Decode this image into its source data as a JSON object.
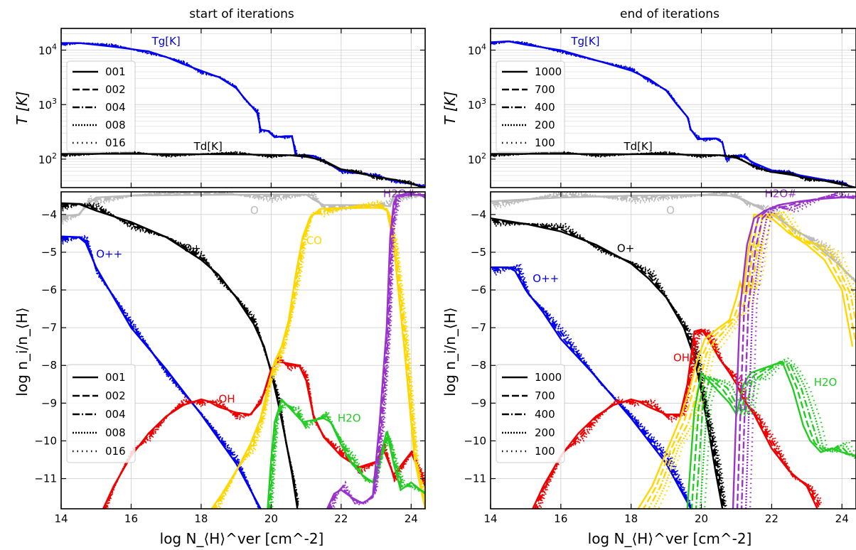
{
  "panels": [
    {
      "title": "start of iterations",
      "legend_top": [
        "001",
        "002",
        "004",
        "008",
        "016"
      ],
      "legend_bottom": [
        "001",
        "002",
        "004",
        "008",
        "016"
      ]
    },
    {
      "title": "end of iterations",
      "legend_top": [
        "1000",
        "700",
        "400",
        "200",
        "100"
      ],
      "legend_bottom": [
        "1000",
        "700",
        "400",
        "200",
        "100"
      ]
    }
  ],
  "axes": {
    "top_ylabel": "T [K]",
    "bottom_ylabel": "log n_i/n_⟨H⟩",
    "xlabel": "log N_⟨H⟩^ver [cm^-2]",
    "xlim": [
      14,
      24.4
    ],
    "xticks": [
      "14",
      "16",
      "18",
      "20",
      "22",
      "24"
    ],
    "top_ylim_log10": [
      1.48,
      4.4
    ],
    "top_yticks": [
      "10^2",
      "10^3",
      "10^4"
    ],
    "bottom_ylim": [
      -11.8,
      -3.4
    ],
    "bottom_yticks": [
      "-4",
      "-5",
      "-6",
      "-7",
      "-8",
      "-9",
      "-10",
      "-11"
    ]
  },
  "colors": {
    "Tg": "#0000ee",
    "Td": "#000000",
    "O": "#bbbbbb",
    "O+": "#000000",
    "O++": "#0000ee",
    "CO": "#ffd700",
    "OH": "#ee0000",
    "H2O": "#22cc22",
    "H2O#": "#9933cc"
  },
  "chart_data": [
    {
      "type": "line",
      "title": "start of iterations",
      "xlim": [
        14,
        24.4
      ],
      "temperature": {
        "ylabel": "T [K]",
        "yscale": "log",
        "ylim": [
          30,
          25000
        ],
        "series": [
          {
            "name": "Tg[K]",
            "x": [
              14,
              14.5,
              15.5,
              16.5,
              17,
              17.5,
              18,
              18.5,
              19,
              19.2,
              19.4,
              19.6,
              19.7,
              19.9,
              20.1,
              20.4,
              20.6,
              20.7,
              20.9,
              21.2,
              21.5,
              22,
              22.5,
              23,
              23.5,
              24,
              24.4
            ],
            "y": [
              13500,
              13500,
              11500,
              9500,
              7500,
              5500,
              4200,
              3200,
              2000,
              1400,
              1000,
              700,
              350,
              330,
              250,
              265,
              265,
              115,
              120,
              115,
              90,
              62,
              55,
              48,
              42,
              35,
              30
            ]
          },
          {
            "name": "Td[K]",
            "x": [
              14,
              15,
              16,
              17,
              18,
              19,
              20,
              20.5,
              21,
              21.5,
              22,
              22.5,
              23,
              23.5,
              24,
              24.4
            ],
            "y": [
              125,
              125,
              125,
              124,
              123,
              122,
              120,
              118,
              110,
              95,
              65,
              55,
              48,
              42,
              35,
              30
            ]
          }
        ]
      },
      "abundance": {
        "ylabel": "log n_i/n_⟨H⟩",
        "ylim": [
          -11.8,
          -3.4
        ],
        "series": [
          {
            "name": "O",
            "x": [
              14,
              14.5,
              14.8,
              15,
              16,
              18,
              20,
              21,
              21.2,
              21.5,
              23,
              23.4,
              23.5,
              24.4
            ],
            "y": [
              -4.05,
              -4.0,
              -3.7,
              -3.55,
              -3.5,
              -3.48,
              -3.47,
              -3.47,
              -3.6,
              -3.75,
              -3.75,
              -3.78,
              -3.48,
              -3.48
            ]
          },
          {
            "name": "O+",
            "x": [
              14,
              14.5,
              15,
              16,
              17,
              18,
              18.5,
              19,
              19.5,
              19.8,
              20,
              20.2,
              20.4,
              20.6,
              20.75
            ],
            "y": [
              -3.7,
              -3.72,
              -3.9,
              -4.2,
              -4.6,
              -5.2,
              -5.6,
              -6.2,
              -6.9,
              -7.5,
              -8.2,
              -9.0,
              -9.9,
              -10.9,
              -11.8
            ]
          },
          {
            "name": "O++",
            "x": [
              14,
              14.5,
              14.7,
              15,
              15.5,
              16,
              17,
              18,
              19,
              19.7
            ],
            "y": [
              -4.58,
              -4.6,
              -4.75,
              -5.4,
              -6.2,
              -7.0,
              -8.1,
              -9.3,
              -10.6,
              -11.8
            ]
          },
          {
            "name": "OH",
            "x": [
              15.2,
              15.5,
              16,
              16.5,
              17,
              17.5,
              18,
              18.2,
              18.5,
              19,
              19.4,
              19.7,
              19.9,
              20,
              20.2,
              20.5,
              20.8,
              21,
              21.2,
              21.5,
              22,
              22.5,
              23,
              23.2,
              23.5,
              24,
              24.4
            ],
            "y": [
              -11.8,
              -11.2,
              -10.4,
              -9.8,
              -9.35,
              -9.05,
              -8.9,
              -8.95,
              -9.1,
              -9.25,
              -9.3,
              -9.0,
              -8.4,
              -8.1,
              -7.9,
              -7.95,
              -8.0,
              -8.4,
              -9.3,
              -9.9,
              -10.4,
              -10.7,
              -10.55,
              -10.2,
              -10.9,
              -10.3,
              -11.2
            ]
          },
          {
            "name": "CO",
            "x": [
              18.3,
              18.6,
              19,
              19.4,
              19.7,
              19.9,
              20.1,
              20.3,
              20.5,
              20.7,
              20.9,
              21.1,
              21.4,
              22,
              23,
              23.3,
              23.5,
              23.8,
              24.1,
              24.4
            ],
            "y": [
              -11.8,
              -11.4,
              -10.8,
              -10.1,
              -9.4,
              -8.6,
              -7.9,
              -7.5,
              -6.8,
              -5.6,
              -4.6,
              -4.1,
              -3.85,
              -3.83,
              -3.82,
              -3.85,
              -4.8,
              -7.5,
              -10.5,
              -11.8
            ]
          },
          {
            "name": "H2O",
            "x": [
              19.9,
              20,
              20.1,
              20.3,
              20.5,
              20.7,
              20.9,
              21.2,
              21.5,
              21.7,
              22,
              22.3,
              22.6,
              22.9,
              23.1,
              23.3,
              23.5,
              23.7,
              24,
              24.4
            ],
            "y": [
              -11.8,
              -10.5,
              -9.5,
              -8.9,
              -9.1,
              -9.3,
              -9.5,
              -9.45,
              -9.4,
              -9.5,
              -10.1,
              -10.6,
              -10.9,
              -11.1,
              -10.5,
              -9.75,
              -10.6,
              -11.3,
              -11.1,
              -11.4
            ]
          },
          {
            "name": "H2O#",
            "x": [
              21.6,
              21.8,
              22,
              22.3,
              22.6,
              22.9,
              23.1,
              23.3,
              23.4,
              23.5,
              23.6,
              24,
              24.4
            ],
            "y": [
              -11.8,
              -11.4,
              -11.3,
              -11.5,
              -11.65,
              -11.5,
              -9.5,
              -7.0,
              -4.6,
              -3.7,
              -3.5,
              -3.48,
              -3.48
            ]
          }
        ]
      }
    },
    {
      "type": "line",
      "title": "end of iterations",
      "xlim": [
        14,
        24.4
      ],
      "temperature": {
        "ylabel": "T [K]",
        "yscale": "log",
        "ylim": [
          30,
          25000
        ],
        "series": [
          {
            "name": "Tg[K]",
            "x": [
              14,
              14.5,
              15,
              16,
              17,
              18,
              18.5,
              19,
              19.3,
              19.6,
              19.7,
              19.9,
              20.1,
              20.4,
              20.6,
              20.7,
              20.9,
              21.2,
              21.5,
              22,
              22.5,
              23,
              23.5,
              24,
              24.4
            ],
            "y": [
              14000,
              14500,
              12500,
              10000,
              6500,
              4200,
              3000,
              1800,
              1000,
              600,
              350,
              230,
              240,
              240,
              200,
              100,
              115,
              110,
              85,
              62,
              55,
              48,
              42,
              35,
              30
            ]
          },
          {
            "name": "Td[K]",
            "x": [
              14,
              15,
              16,
              17,
              18,
              19,
              20,
              20.5,
              21,
              21.5,
              22,
              22.5,
              23,
              23.5,
              24,
              24.4
            ],
            "y": [
              125,
              125,
              125,
              124,
              123,
              122,
              120,
              118,
              105,
              75,
              58,
              52,
              45,
              40,
              34,
              30
            ]
          }
        ]
      },
      "abundance": {
        "ylabel": "log n_i/n_⟨H⟩",
        "ylim": [
          -11.8,
          -3.4
        ],
        "series": [
          {
            "name": "O",
            "x": [
              14,
              15,
              16,
              18,
              20,
              20.8,
              21.2,
              21.5,
              22,
              22.5,
              23,
              23.5,
              24,
              24.4
            ],
            "y": [
              -3.65,
              -3.6,
              -3.55,
              -3.5,
              -3.48,
              -3.5,
              -3.6,
              -3.75,
              -4.0,
              -4.3,
              -4.6,
              -5.0,
              -5.4,
              -5.8
            ]
          },
          {
            "name": "O+",
            "x": [
              14,
              15,
              16,
              17,
              18,
              18.5,
              19,
              19.5,
              19.8,
              20,
              20.2,
              20.4,
              20.6
            ],
            "y": [
              -4.1,
              -4.25,
              -4.45,
              -4.8,
              -5.3,
              -5.7,
              -6.2,
              -7.0,
              -7.8,
              -8.7,
              -9.7,
              -10.8,
              -11.8
            ]
          },
          {
            "name": "O++",
            "x": [
              14,
              14.5,
              14.7,
              15,
              15.5,
              16,
              17,
              18,
              19,
              19.7
            ],
            "y": [
              -5.4,
              -5.4,
              -5.5,
              -6.0,
              -6.6,
              -7.3,
              -8.3,
              -9.4,
              -10.6,
              -11.8
            ]
          },
          {
            "name": "OH",
            "x": [
              15.2,
              15.5,
              16,
              16.5,
              17,
              17.5,
              18,
              18.2,
              18.5,
              19,
              19.4,
              19.6,
              19.8,
              20,
              20.2,
              20.5,
              20.8,
              21,
              21.2,
              21.5,
              22,
              22.5,
              23,
              23.3
            ],
            "y": [
              -11.8,
              -11.2,
              -10.4,
              -9.8,
              -9.35,
              -9.05,
              -8.9,
              -8.95,
              -9.1,
              -9.3,
              -9.3,
              -8.5,
              -7.1,
              -7.05,
              -7.3,
              -7.8,
              -8.2,
              -8.5,
              -8.9,
              -9.3,
              -10.2,
              -10.8,
              -11.2,
              -11.8
            ]
          },
          {
            "name": "CO",
            "x": [
              18.2,
              18.6,
              19,
              19.4,
              19.7,
              19.9,
              20.1,
              20.5,
              20.8,
              21,
              21.1,
              21.2,
              21.3,
              21.5,
              22,
              22.5,
              23,
              23.5,
              24,
              24.3
            ],
            "y": [
              -11.8,
              -11.2,
              -10.3,
              -9.4,
              -8.5,
              -7.8,
              -7.3,
              -7.0,
              -6.8,
              -6.2,
              -5.8,
              -6.1,
              -5.2,
              -4.0,
              -4.1,
              -4.5,
              -4.8,
              -5.2,
              -6.0,
              -7.5
            ]
          },
          {
            "name": "H2O",
            "x": [
              19.6,
              19.7,
              19.8,
              20,
              20.2,
              20.5,
              20.8,
              21,
              21.2,
              21.4,
              21.7,
              22,
              22.3,
              22.6,
              22.9,
              23.1,
              23.4,
              23.7,
              24,
              24.4
            ],
            "y": [
              -11.8,
              -10.5,
              -9.2,
              -8.2,
              -8.4,
              -8.7,
              -9.0,
              -9.3,
              -8.5,
              -8.2,
              -8.1,
              -8.0,
              -7.9,
              -8.6,
              -9.6,
              -10.0,
              -10.3,
              -10.2,
              -10.3,
              -10.4
            ]
          },
          {
            "name": "H2O#",
            "x": [
              20.9,
              21,
              21.1,
              21.3,
              21.5,
              21.8,
              22.2,
              22.8,
              23.5,
              24.4
            ],
            "y": [
              -11.8,
              -9.0,
              -6.5,
              -4.8,
              -4.1,
              -3.9,
              -3.75,
              -3.65,
              -3.58,
              -3.52
            ]
          }
        ]
      }
    }
  ],
  "labels": {
    "Tg": "Tg[K]",
    "Td": "Td[K]",
    "O": "O",
    "O+": "O+",
    "O++": "O++",
    "CO": "CO",
    "OH": "OH",
    "H2O": "H2O",
    "H2O#": "H2O#"
  }
}
